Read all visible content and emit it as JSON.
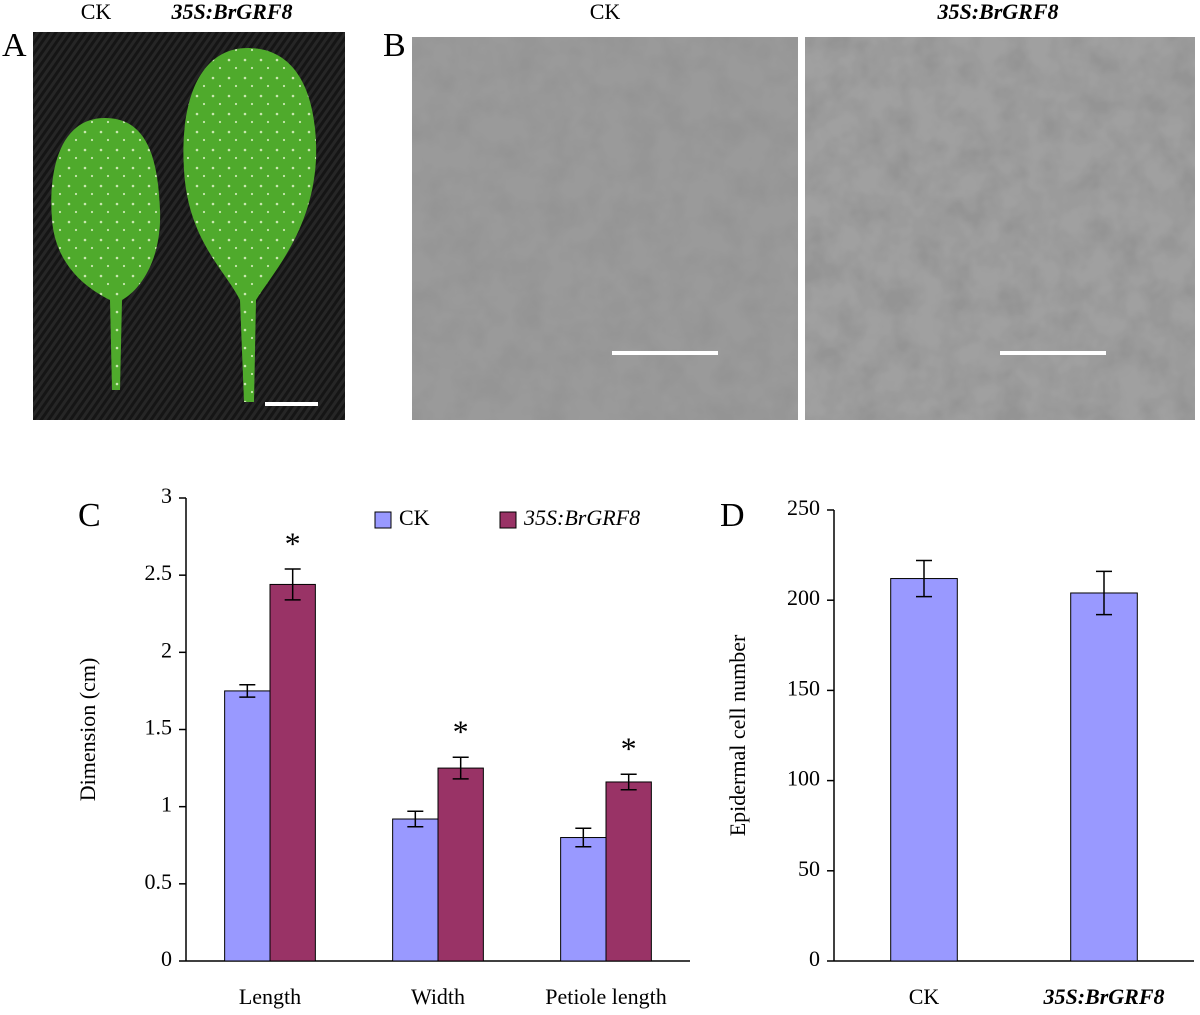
{
  "panels": {
    "A": {
      "label": "A",
      "captions": [
        "CK",
        "35S:BrGRF8"
      ]
    },
    "B": {
      "label": "B",
      "captions": [
        "CK",
        "35S:BrGRF8"
      ]
    },
    "C": {
      "label": "C"
    },
    "D": {
      "label": "D"
    }
  },
  "chart_data": [
    {
      "type": "bar",
      "y_label": "Dimension (cm)",
      "categories": [
        "Length",
        "Width",
        "Petiole length"
      ],
      "series": [
        {
          "name": "CK",
          "color": "#9999ff",
          "values": [
            1.75,
            0.92,
            0.8
          ],
          "errors": [
            0.04,
            0.05,
            0.06
          ]
        },
        {
          "name": "35S:BrGRF8",
          "color": "#993366",
          "values": [
            2.44,
            1.25,
            1.16
          ],
          "errors": [
            0.1,
            0.07,
            0.05
          ],
          "annotations": [
            "*",
            "*",
            "*"
          ]
        }
      ],
      "ylim": [
        0,
        3
      ],
      "yticks": [
        0,
        0.5,
        1,
        1.5,
        2,
        2.5,
        3
      ],
      "legend": "top"
    },
    {
      "type": "bar",
      "y_label": "Epidermal cell number",
      "categories": [
        "CK",
        "35S:BrGRF8"
      ],
      "series": [
        {
          "color": "#9999ff",
          "values": [
            212,
            204
          ],
          "errors": [
            10,
            12
          ]
        }
      ],
      "ylim": [
        0,
        250
      ],
      "yticks": [
        0,
        50,
        100,
        150,
        200,
        250
      ]
    }
  ]
}
